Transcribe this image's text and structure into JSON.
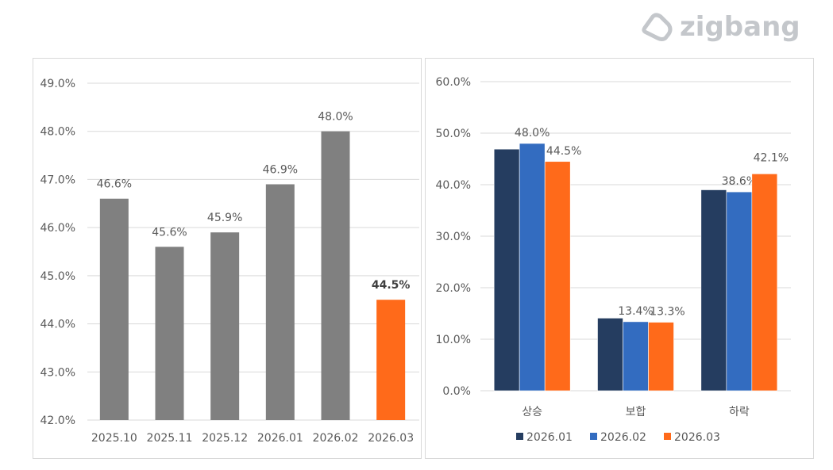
{
  "logo": {
    "text": "zigbang"
  },
  "chart_data": [
    {
      "type": "bar",
      "title": "",
      "categories": [
        "2025.10",
        "2025.11",
        "2025.12",
        "2026.01",
        "2026.02",
        "2026.03"
      ],
      "values": [
        46.6,
        45.6,
        45.9,
        46.9,
        48.0,
        44.5
      ],
      "data_labels": [
        "46.6%",
        "45.6%",
        "45.9%",
        "46.9%",
        "48.0%",
        "44.5%"
      ],
      "colors": [
        "#808080",
        "#808080",
        "#808080",
        "#808080",
        "#808080",
        "#ff6a1a"
      ],
      "ylim": [
        42,
        49
      ],
      "yticks": [
        "42.0%",
        "43.0%",
        "44.0%",
        "45.0%",
        "46.0%",
        "47.0%",
        "48.0%",
        "49.0%"
      ],
      "grid": true,
      "xlabel": "",
      "ylabel": ""
    },
    {
      "type": "bar",
      "title": "",
      "categories": [
        "상승",
        "보합",
        "하락"
      ],
      "series": [
        {
          "name": "2026.01",
          "color": "#253d60",
          "values": [
            46.9,
            14.1,
            39.0
          ],
          "labels": [
            "",
            "",
            ""
          ]
        },
        {
          "name": "2026.02",
          "color": "#336cc0",
          "values": [
            48.0,
            13.4,
            38.6
          ],
          "labels": [
            "48.0%",
            "13.4%",
            "38.6%"
          ]
        },
        {
          "name": "2026.03",
          "color": "#ff6a1a",
          "values": [
            44.5,
            13.3,
            42.1
          ],
          "labels": [
            "44.5%",
            "13.3%",
            "42.1%"
          ]
        }
      ],
      "ylim": [
        0,
        60
      ],
      "yticks": [
        "0.0%",
        "10.0%",
        "20.0%",
        "30.0%",
        "40.0%",
        "50.0%",
        "60.0%"
      ],
      "grid": true,
      "legend": "bottom",
      "xlabel": "",
      "ylabel": ""
    }
  ]
}
